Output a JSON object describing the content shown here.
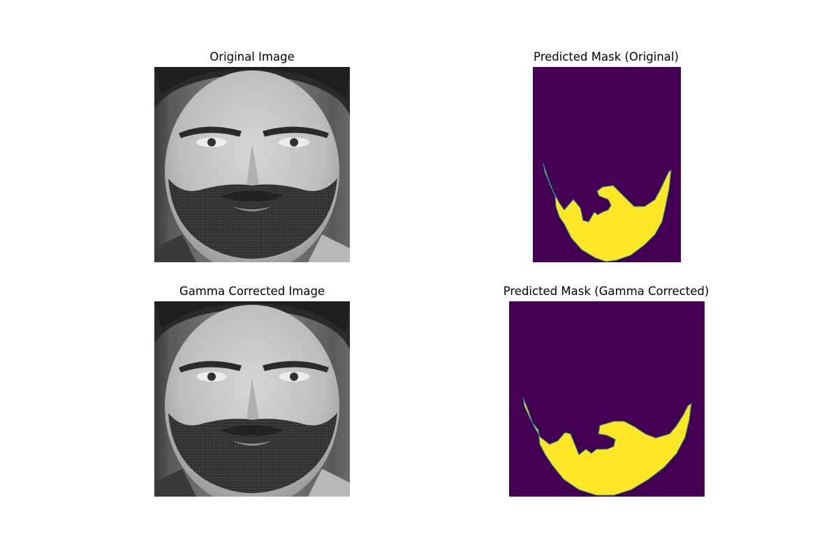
{
  "figure": {
    "panels": [
      {
        "id": "original-image",
        "title": "Original Image",
        "kind": "grayscale-face-photo"
      },
      {
        "id": "predicted-mask-original",
        "title": "Predicted Mask (Original)",
        "kind": "segmentation-mask"
      },
      {
        "id": "gamma-corrected-image",
        "title": "Gamma Corrected Image",
        "kind": "grayscale-face-photo"
      },
      {
        "id": "predicted-mask-gamma",
        "title": "Predicted Mask (Gamma Corrected)",
        "kind": "segmentation-mask"
      }
    ],
    "colors": {
      "mask_background": "#440154",
      "mask_foreground": "#fde725",
      "mask_edge": "#21918c",
      "page_background": "#ffffff"
    }
  }
}
